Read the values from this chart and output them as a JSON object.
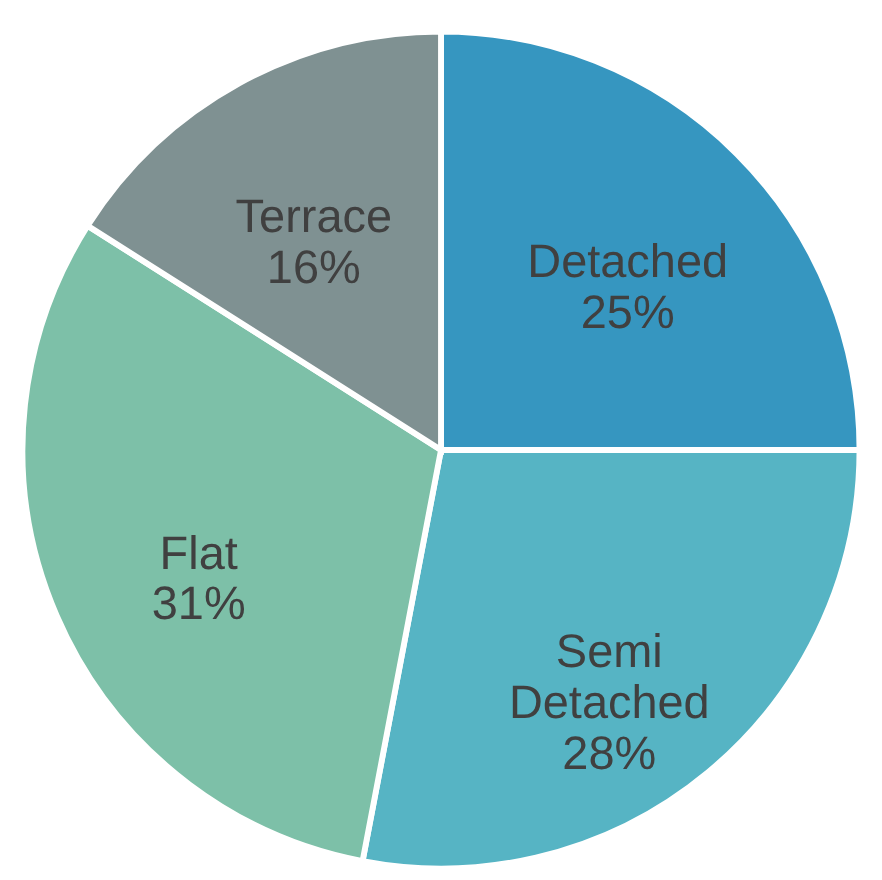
{
  "chart_data": {
    "type": "pie",
    "categories": [
      "Detached",
      "Semi Detached",
      "Flat",
      "Terrace"
    ],
    "values": [
      25,
      28,
      31,
      16
    ],
    "colors": [
      "#3696c0",
      "#56b4c4",
      "#7dc0a8",
      "#7f9192"
    ],
    "value_labels": [
      "25%",
      "28%",
      "31%",
      "16%"
    ],
    "legend": false
  }
}
